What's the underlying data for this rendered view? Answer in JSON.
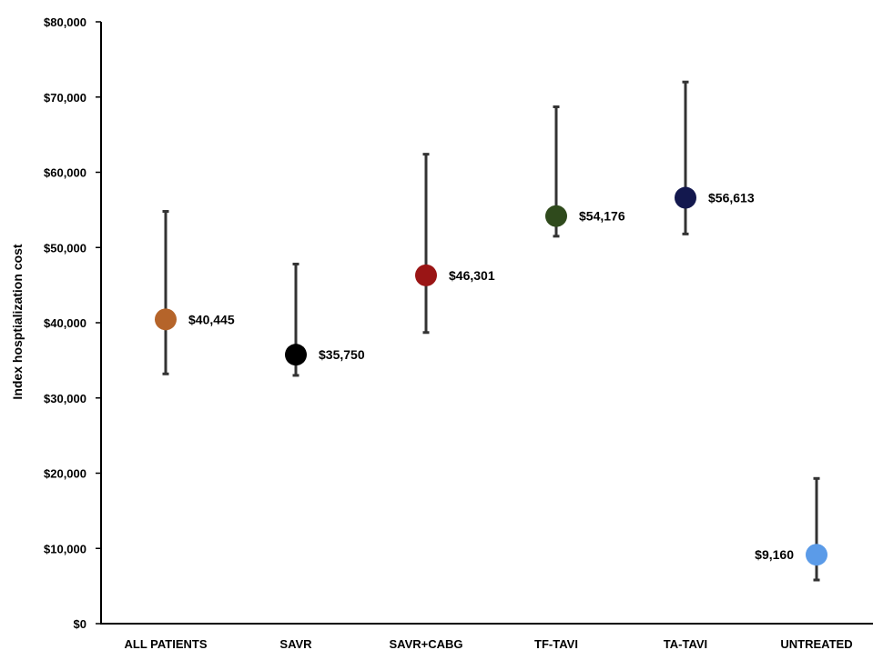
{
  "chart_data": {
    "type": "scatter",
    "subtype": "point-with-error-bars",
    "title": "",
    "xlabel": "",
    "ylabel": "Index hosptialization cost",
    "ylim": [
      0,
      80000
    ],
    "yticks": [
      0,
      10000,
      20000,
      30000,
      40000,
      50000,
      60000,
      70000,
      80000
    ],
    "ytick_labels": [
      "$0",
      "$10,000",
      "$20,000",
      "$30,000",
      "$40,000",
      "$50,000",
      "$60,000",
      "$70,000",
      "$80,000"
    ],
    "grid": false,
    "legend": "none",
    "categories": [
      "ALL PATIENTS",
      "SAVR",
      "SAVR+CABG",
      "TF-TAVI",
      "TA-TAVI",
      "UNTREATED"
    ],
    "points": [
      {
        "category": "ALL PATIENTS",
        "value": 40445,
        "label": "$40,445",
        "low": 33200,
        "high": 54800,
        "color": "#B5642A",
        "label_side": "right"
      },
      {
        "category": "SAVR",
        "value": 35750,
        "label": "$35,750",
        "low": 33000,
        "high": 47800,
        "color": "#000000",
        "label_side": "right"
      },
      {
        "category": "SAVR+CABG",
        "value": 46301,
        "label": "$46,301",
        "low": 38700,
        "high": 62400,
        "color": "#9A1515",
        "label_side": "right"
      },
      {
        "category": "TF-TAVI",
        "value": 54176,
        "label": "$54,176",
        "low": 51500,
        "high": 68700,
        "color": "#2F4A1C",
        "label_side": "right"
      },
      {
        "category": "TA-TAVI",
        "value": 56613,
        "label": "$56,613",
        "low": 51800,
        "high": 72000,
        "color": "#13184E",
        "label_side": "right"
      },
      {
        "category": "UNTREATED",
        "value": 9160,
        "label": "$9,160",
        "low": 5800,
        "high": 19300,
        "color": "#5B9BE8",
        "label_side": "left"
      }
    ]
  }
}
